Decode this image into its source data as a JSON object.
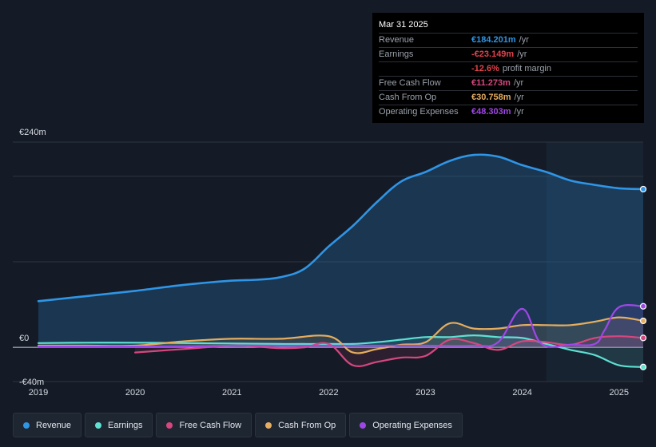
{
  "tooltip": {
    "date": "Mar 31 2025",
    "rows": [
      {
        "label": "Revenue",
        "value": "€184.201m",
        "unit": "/yr",
        "color": "#2f95e6"
      },
      {
        "label": "Earnings",
        "value": "-€23.149m",
        "unit": "/yr",
        "color": "#e2424b"
      },
      {
        "label": "",
        "value": "-12.6%",
        "unit": "profit margin",
        "color": "#e2424b"
      },
      {
        "label": "Free Cash Flow",
        "value": "€11.273m",
        "unit": "/yr",
        "color": "#d6477f"
      },
      {
        "label": "Cash From Op",
        "value": "€30.758m",
        "unit": "/yr",
        "color": "#e5ad5f"
      },
      {
        "label": "Operating Expenses",
        "value": "€48.303m",
        "unit": "/yr",
        "color": "#9f47e6"
      }
    ]
  },
  "legend": [
    {
      "label": "Revenue",
      "color": "#2f95e6"
    },
    {
      "label": "Earnings",
      "color": "#5ee0d3"
    },
    {
      "label": "Free Cash Flow",
      "color": "#d6477f"
    },
    {
      "label": "Cash From Op",
      "color": "#e5ad5f"
    },
    {
      "label": "Operating Expenses",
      "color": "#9f47e6"
    }
  ],
  "chart_data": {
    "type": "area",
    "title": "",
    "xlabel": "",
    "ylabel": "",
    "ylim": [
      -40,
      240
    ],
    "xlim": [
      2019.0,
      2025.25
    ],
    "y_tick_labels": [
      {
        "value": 240,
        "label": "€240m"
      },
      {
        "value": 0,
        "label": "€0"
      },
      {
        "value": -40,
        "label": "-€40m"
      }
    ],
    "x_tick_labels": [
      "2019",
      "2020",
      "2021",
      "2022",
      "2023",
      "2024",
      "2025"
    ],
    "x_ticks": [
      2019,
      2020,
      2021,
      2022,
      2023,
      2024,
      2025
    ],
    "forecast_shade_from": 2024.25,
    "series": [
      {
        "name": "Revenue",
        "color": "#2f95e6",
        "x": [
          2019.0,
          2019.5,
          2020.0,
          2020.5,
          2021.0,
          2021.25,
          2021.5,
          2021.75,
          2022.0,
          2022.25,
          2022.5,
          2022.75,
          2023.0,
          2023.25,
          2023.5,
          2023.75,
          2024.0,
          2024.25,
          2024.5,
          2024.75,
          2025.0,
          2025.25
        ],
        "values": [
          54,
          60,
          66,
          73,
          78,
          79,
          82,
          92,
          118,
          142,
          170,
          194,
          205,
          218,
          225,
          223,
          213,
          205,
          195,
          190,
          186,
          185
        ]
      },
      {
        "name": "Earnings",
        "color": "#5ee0d3",
        "x": [
          2019.0,
          2019.5,
          2020.0,
          2020.5,
          2021.0,
          2021.5,
          2022.0,
          2022.25,
          2022.5,
          2022.75,
          2023.0,
          2023.25,
          2023.5,
          2023.75,
          2024.0,
          2024.25,
          2024.5,
          2024.75,
          2025.0,
          2025.25
        ],
        "values": [
          5,
          5.5,
          5.5,
          5,
          4.5,
          4,
          4,
          4,
          6,
          9,
          12,
          12,
          14,
          12,
          11,
          4,
          -3,
          -9,
          -21,
          -23
        ]
      },
      {
        "name": "Free Cash Flow",
        "color": "#d6477f",
        "x": [
          2020.0,
          2020.5,
          2021.0,
          2021.25,
          2021.5,
          2021.75,
          2022.0,
          2022.25,
          2022.5,
          2022.75,
          2023.0,
          2023.25,
          2023.5,
          2023.75,
          2024.0,
          2024.25,
          2024.5,
          2024.75,
          2025.0,
          2025.25
        ],
        "values": [
          -6,
          -2,
          2,
          1,
          -1,
          0,
          4,
          -21,
          -17,
          -12,
          -10,
          9,
          5,
          -3,
          7,
          6,
          3,
          11,
          13,
          11
        ]
      },
      {
        "name": "Cash From Op",
        "color": "#e5ad5f",
        "x": [
          2019.0,
          2019.5,
          2020.0,
          2020.5,
          2021.0,
          2021.5,
          2022.0,
          2022.25,
          2022.5,
          2022.75,
          2023.0,
          2023.25,
          2023.5,
          2023.75,
          2024.0,
          2024.25,
          2024.5,
          2024.75,
          2025.0,
          2025.25
        ],
        "values": [
          2,
          2,
          2,
          7,
          10,
          10,
          13,
          -6,
          -2,
          3,
          6,
          28,
          22,
          22,
          26,
          26,
          26,
          30,
          35,
          31
        ]
      },
      {
        "name": "Operating Expenses",
        "color": "#9f47e6",
        "x": [
          2019.0,
          2019.5,
          2020.0,
          2020.5,
          2021.0,
          2021.5,
          2022.0,
          2022.5,
          2023.0,
          2023.5,
          2023.75,
          2024.0,
          2024.2,
          2024.5,
          2024.75,
          2024.85,
          2025.0,
          2025.25
        ],
        "values": [
          1,
          1,
          1,
          1,
          2,
          2,
          2,
          2,
          2,
          2,
          6,
          45,
          4,
          3,
          4,
          20,
          47,
          48
        ]
      }
    ]
  }
}
